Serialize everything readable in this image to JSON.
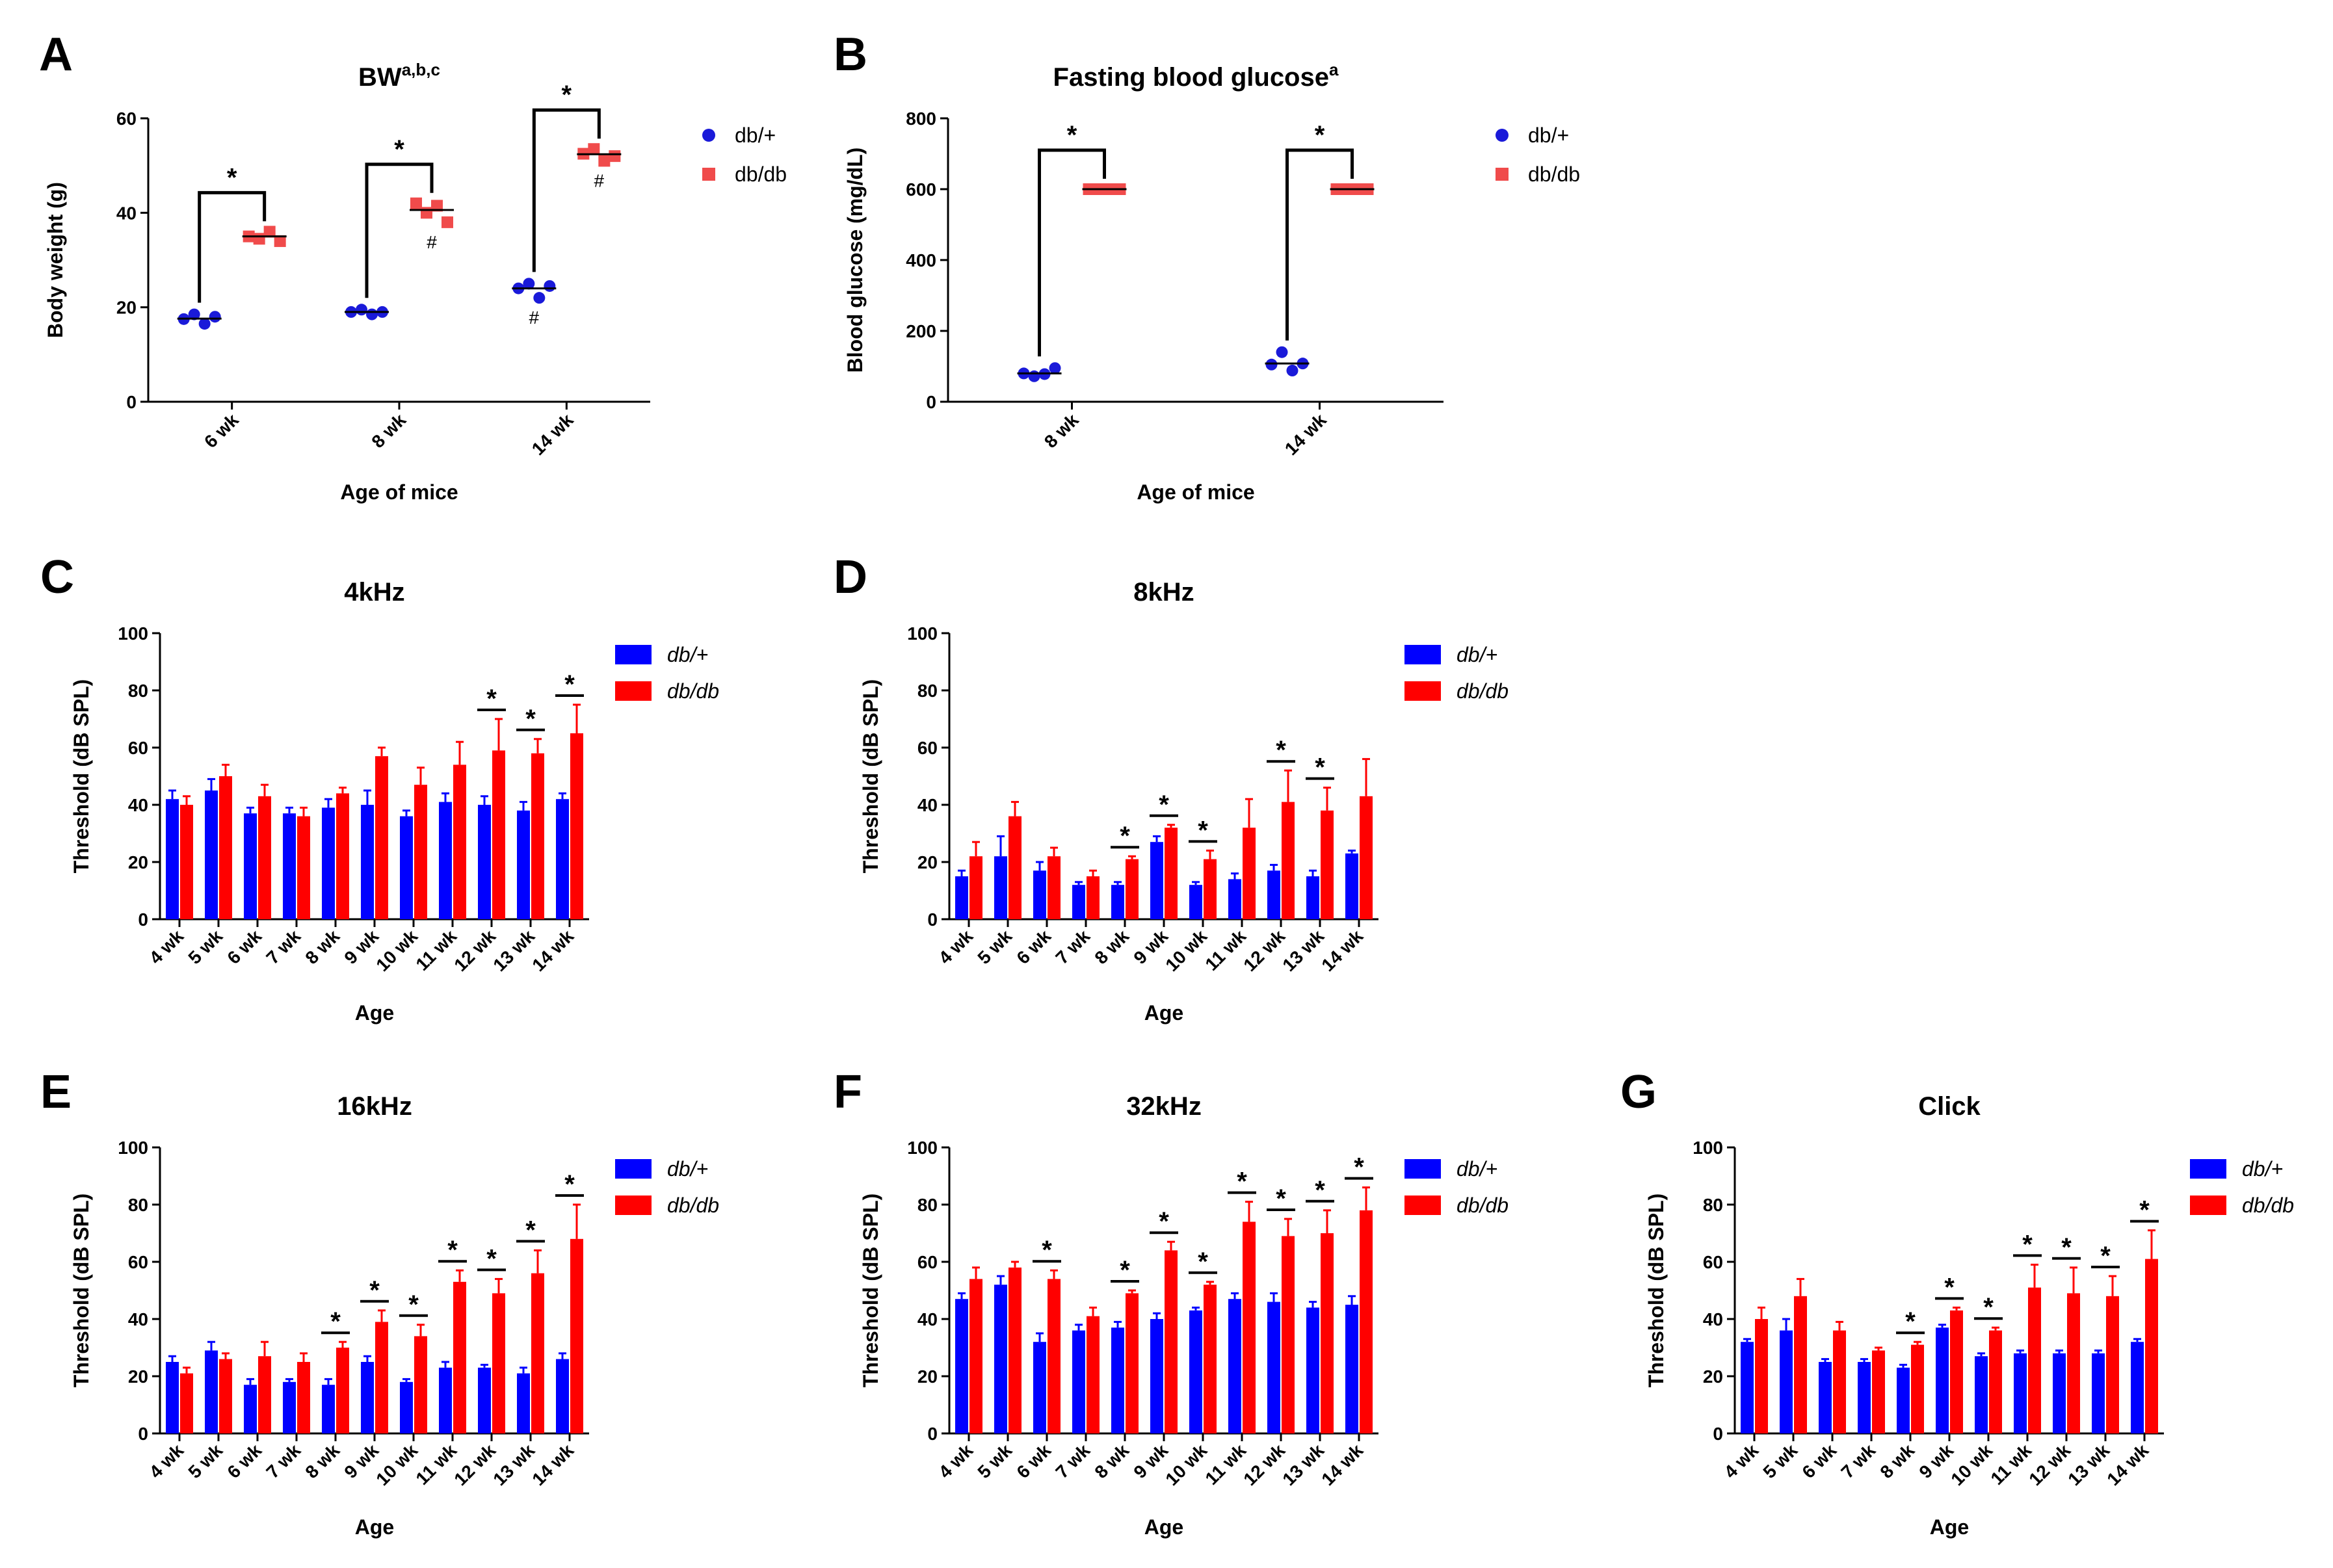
{
  "colors": {
    "db_plus_bar": "#0000ff",
    "db_db_bar": "#ff0000",
    "db_plus_dot": "#1a1ad9",
    "db_db_dot": "#f04b4b"
  },
  "legend": {
    "series1": "db/+",
    "series2": "db/db"
  },
  "chart_data": [
    {
      "panel": "A",
      "type": "scatter",
      "title": "BW",
      "title_sup": "a,b,c",
      "xlabel": "Age of mice",
      "ylabel": "Body weight (g)",
      "ylim": [
        0,
        60
      ],
      "yticks": [
        0,
        20,
        40,
        60
      ],
      "categories": [
        "6 wk",
        "8 wk",
        "14 wk"
      ],
      "series": [
        {
          "name": "db/+",
          "points": [
            [
              17.5,
              18.5,
              16.5,
              18.0
            ],
            [
              19.0,
              19.5,
              18.5,
              19.0
            ],
            [
              24.0,
              25.0,
              22.0,
              24.5
            ]
          ],
          "means": [
            17.6,
            19.0,
            24.0
          ]
        },
        {
          "name": "db/db",
          "points": [
            [
              35.0,
              34.5,
              36.0,
              34.0
            ],
            [
              42.0,
              40.0,
              41.5,
              38.0
            ],
            [
              52.5,
              53.5,
              51.0,
              52.0
            ]
          ],
          "means": [
            35.0,
            40.6,
            52.4
          ]
        }
      ],
      "significance": [
        0,
        1,
        2
      ],
      "hash": {
        "db/+": [
          2
        ],
        "db/db": [
          1,
          2
        ]
      },
      "star_label": "*",
      "hash_label": "#"
    },
    {
      "panel": "B",
      "type": "scatter",
      "title": "Fasting blood glucose",
      "title_sup": "a",
      "xlabel": "Age of mice",
      "ylabel": "Blood glucose (mg/dL)",
      "ylim": [
        0,
        800
      ],
      "yticks": [
        0,
        200,
        400,
        600,
        800
      ],
      "categories": [
        "8 wk",
        "14 wk"
      ],
      "series": [
        {
          "name": "db/+",
          "points": [
            [
              80,
              72,
              78,
              95
            ],
            [
              105,
              140,
              88,
              108
            ]
          ],
          "means": [
            80,
            108
          ]
        },
        {
          "name": "db/db",
          "points": [
            [
              600,
              600,
              600,
              600
            ],
            [
              600,
              600,
              600,
              600
            ]
          ],
          "means": [
            600,
            600
          ]
        }
      ],
      "significance": [
        0,
        1
      ],
      "star_label": "*"
    },
    {
      "panel": "C",
      "type": "bar",
      "title": "4kHz",
      "xlabel": "Age",
      "ylabel": "Threshold (dB SPL)",
      "ylim": [
        0,
        100
      ],
      "yticks": [
        0,
        20,
        40,
        60,
        80,
        100
      ],
      "categories": [
        "4 wk",
        "5 wk",
        "6 wk",
        "7 wk",
        "8 wk",
        "9 wk",
        "10 wk",
        "11 wk",
        "12 wk",
        "13 wk",
        "14 wk"
      ],
      "series": [
        {
          "name": "db/+",
          "values": [
            42,
            45,
            37,
            37,
            39,
            40,
            36,
            41,
            40,
            38,
            42
          ],
          "errors": [
            3,
            4,
            2,
            2,
            3,
            5,
            2,
            3,
            3,
            3,
            2
          ]
        },
        {
          "name": "db/db",
          "values": [
            40,
            50,
            43,
            36,
            44,
            57,
            47,
            54,
            59,
            58,
            65
          ],
          "errors": [
            3,
            4,
            4,
            3,
            2,
            3,
            6,
            8,
            11,
            5,
            10
          ]
        }
      ],
      "significance": [
        8,
        9,
        10
      ],
      "star_label": "*"
    },
    {
      "panel": "D",
      "type": "bar",
      "title": "8kHz",
      "xlabel": "Age",
      "ylabel": "Threshold (dB SPL)",
      "ylim": [
        0,
        100
      ],
      "yticks": [
        0,
        20,
        40,
        60,
        80,
        100
      ],
      "categories": [
        "4 wk",
        "5 wk",
        "6 wk",
        "7 wk",
        "8 wk",
        "9 wk",
        "10 wk",
        "11 wk",
        "12 wk",
        "13 wk",
        "14 wk"
      ],
      "series": [
        {
          "name": "db/+",
          "values": [
            15,
            22,
            17,
            12,
            12,
            27,
            12,
            14,
            17,
            15,
            23
          ],
          "errors": [
            2,
            7,
            3,
            1,
            1,
            2,
            1,
            2,
            2,
            2,
            1
          ]
        },
        {
          "name": "db/db",
          "values": [
            22,
            36,
            22,
            15,
            21,
            32,
            21,
            32,
            41,
            38,
            43
          ],
          "errors": [
            5,
            5,
            3,
            2,
            1,
            1,
            3,
            10,
            11,
            8,
            13
          ]
        }
      ],
      "significance": [
        4,
        5,
        6,
        8,
        9
      ],
      "star_label": "*"
    },
    {
      "panel": "E",
      "type": "bar",
      "title": "16kHz",
      "xlabel": "Age",
      "ylabel": "Threshold (dB SPL)",
      "ylim": [
        0,
        100
      ],
      "yticks": [
        0,
        20,
        40,
        60,
        80,
        100
      ],
      "categories": [
        "4 wk",
        "5 wk",
        "6 wk",
        "7 wk",
        "8 wk",
        "9 wk",
        "10 wk",
        "11 wk",
        "12 wk",
        "13 wk",
        "14 wk"
      ],
      "series": [
        {
          "name": "db/+",
          "values": [
            25,
            29,
            17,
            18,
            17,
            25,
            18,
            23,
            23,
            21,
            26
          ],
          "errors": [
            2,
            3,
            2,
            1,
            2,
            2,
            1,
            2,
            1,
            2,
            2
          ]
        },
        {
          "name": "db/db",
          "values": [
            21,
            26,
            27,
            25,
            30,
            39,
            34,
            53,
            49,
            56,
            68
          ],
          "errors": [
            2,
            2,
            5,
            3,
            2,
            4,
            4,
            4,
            5,
            8,
            12
          ]
        }
      ],
      "significance": [
        4,
        5,
        6,
        7,
        8,
        9,
        10
      ],
      "star_label": "*"
    },
    {
      "panel": "F",
      "type": "bar",
      "title": "32kHz",
      "xlabel": "Age",
      "ylabel": "Threshold (dB SPL)",
      "ylim": [
        0,
        100
      ],
      "yticks": [
        0,
        20,
        40,
        60,
        80,
        100
      ],
      "categories": [
        "4 wk",
        "5 wk",
        "6 wk",
        "7 wk",
        "8 wk",
        "9 wk",
        "10 wk",
        "11 wk",
        "12 wk",
        "13 wk",
        "14 wk"
      ],
      "series": [
        {
          "name": "db/+",
          "values": [
            47,
            52,
            32,
            36,
            37,
            40,
            43,
            47,
            46,
            44,
            45
          ],
          "errors": [
            2,
            3,
            3,
            2,
            2,
            2,
            1,
            2,
            3,
            2,
            3
          ]
        },
        {
          "name": "db/db",
          "values": [
            54,
            58,
            54,
            41,
            49,
            64,
            52,
            74,
            69,
            70,
            78
          ],
          "errors": [
            4,
            2,
            3,
            3,
            1,
            3,
            1,
            7,
            6,
            8,
            8
          ]
        }
      ],
      "significance": [
        2,
        4,
        5,
        6,
        7,
        8,
        9,
        10
      ],
      "star_label": "*"
    },
    {
      "panel": "G",
      "type": "bar",
      "title": "Click",
      "xlabel": "Age",
      "ylabel": "Threshold (dB SPL)",
      "ylim": [
        0,
        100
      ],
      "yticks": [
        0,
        20,
        40,
        60,
        80,
        100
      ],
      "categories": [
        "4 wk",
        "5 wk",
        "6 wk",
        "7 wk",
        "8 wk",
        "9 wk",
        "10 wk",
        "11 wk",
        "12 wk",
        "13 wk",
        "14 wk"
      ],
      "series": [
        {
          "name": "db/+",
          "values": [
            32,
            36,
            25,
            25,
            23,
            37,
            27,
            28,
            28,
            28,
            32
          ],
          "errors": [
            1,
            4,
            1,
            1,
            1,
            1,
            1,
            1,
            1,
            1,
            1
          ]
        },
        {
          "name": "db/db",
          "values": [
            40,
            48,
            36,
            29,
            31,
            43,
            36,
            51,
            49,
            48,
            61
          ],
          "errors": [
            4,
            6,
            3,
            1,
            1,
            1,
            1,
            8,
            9,
            7,
            10
          ]
        }
      ],
      "significance": [
        4,
        5,
        6,
        7,
        8,
        9,
        10
      ],
      "star_label": "*"
    }
  ]
}
